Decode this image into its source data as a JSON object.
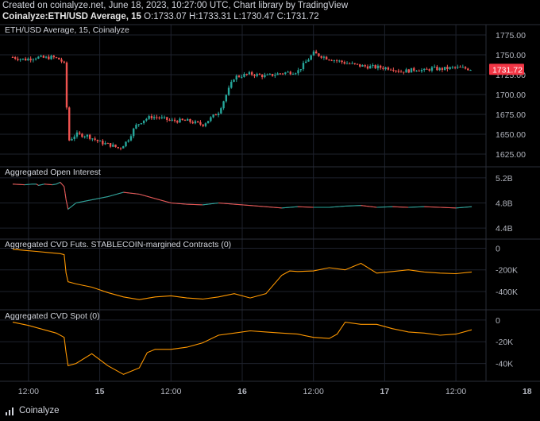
{
  "header": {
    "line1": "Created on coinalyze.net, June 18, 2023, 10:27:00 UTC, Chart library by TradingView",
    "symbol": "Coinalyze:ETH/USD Average, 15",
    "ohlc": "O:1733.07 H:1733.31 L:1730.47 C:1731.72"
  },
  "footer": {
    "brand": "Coinalyze",
    "logo_icon": "coinalyze-logo-icon"
  },
  "colors": {
    "up": "#26a69a",
    "down": "#ef5350",
    "line": "#ff9800",
    "grid": "#1e222d",
    "price_tag": "#f23645"
  },
  "chart_data": [
    {
      "type": "candlestick",
      "title": "ETH/USD Average, 15, Coinalyze",
      "y_ticks": [
        1775.0,
        1750.0,
        1725.0,
        1700.0,
        1675.0,
        1650.0,
        1625.0
      ],
      "y_tick_labels": [
        "1775.00",
        "1750.00",
        "1725.00",
        "1700.00",
        "1675.00",
        "1650.00",
        "1625.00"
      ],
      "ylim": [
        1615,
        1782
      ],
      "last_price": "1731.72",
      "x": [
        0,
        3,
        6,
        8,
        10,
        12,
        13,
        13.5,
        14.2,
        16,
        19,
        22,
        25,
        27,
        29,
        31,
        33,
        35,
        37,
        40,
        44,
        48,
        52,
        56,
        60,
        64,
        68,
        72,
        76,
        80,
        84,
        88,
        90,
        93,
        96,
        98,
        100,
        102,
        104,
        106,
        108,
        112,
        116
      ],
      "values": [
        1747,
        1744,
        1747,
        1746,
        1747,
        1744,
        1738,
        1695,
        1642,
        1650,
        1648,
        1640,
        1636,
        1632,
        1642,
        1660,
        1668,
        1672,
        1671,
        1667,
        1667,
        1662,
        1678,
        1722,
        1726,
        1723,
        1727,
        1729,
        1752,
        1745,
        1740,
        1736,
        1735,
        1734,
        1733,
        1729,
        1730,
        1732,
        1730,
        1733,
        1732,
        1734,
        1732
      ]
    },
    {
      "type": "line",
      "title": "Aggregated Open Interest",
      "y_ticks": [
        5.2,
        4.8,
        4.4
      ],
      "y_tick_labels": [
        "5.2B",
        "4.8B",
        "4.4B"
      ],
      "ylim": [
        4.3,
        5.3
      ],
      "x": [
        0,
        3,
        5,
        6,
        6.5,
        8,
        10,
        11,
        12,
        13,
        13.5,
        14,
        16,
        20,
        24,
        28,
        32,
        36,
        40,
        44,
        48,
        52,
        56,
        60,
        64,
        68,
        72,
        76,
        80,
        84,
        88,
        92,
        96,
        100,
        104,
        108,
        112,
        116
      ],
      "values": [
        5.1,
        5.09,
        5.1,
        5.1,
        5.08,
        5.1,
        5.09,
        5.1,
        5.13,
        5.06,
        4.85,
        4.7,
        4.8,
        4.85,
        4.9,
        4.97,
        4.94,
        4.87,
        4.8,
        4.78,
        4.77,
        4.8,
        4.78,
        4.76,
        4.74,
        4.72,
        4.74,
        4.73,
        4.73,
        4.75,
        4.76,
        4.73,
        4.74,
        4.73,
        4.74,
        4.73,
        4.72,
        4.74
      ]
    },
    {
      "type": "line",
      "title": "Aggregated CVD Futs. STABLECOIN-margined Contracts (0)",
      "y_ticks": [
        0,
        -200,
        -400
      ],
      "y_tick_labels": [
        "0",
        "-200K",
        "-400K"
      ],
      "ylim": [
        -525,
        40
      ],
      "x": [
        0,
        3,
        6,
        9,
        12,
        13,
        13.5,
        14,
        16,
        20,
        24,
        28,
        32,
        36,
        40,
        44,
        48,
        52,
        56,
        60,
        64,
        68,
        70,
        72,
        76,
        80,
        84,
        88,
        92,
        96,
        100,
        104,
        108,
        112,
        116
      ],
      "values": [
        -10,
        -20,
        -30,
        -40,
        -50,
        -60,
        -230,
        -310,
        -330,
        -360,
        -410,
        -450,
        -475,
        -450,
        -440,
        -460,
        -470,
        -450,
        -420,
        -460,
        -420,
        -250,
        -210,
        -215,
        -210,
        -180,
        -200,
        -140,
        -230,
        -215,
        -200,
        -220,
        -230,
        -235,
        -220
      ]
    },
    {
      "type": "line",
      "title": "Aggregated CVD Spot (0)",
      "y_ticks": [
        0,
        -20,
        -40
      ],
      "y_tick_labels": [
        "0",
        "-20K",
        "-40K"
      ],
      "ylim": [
        -52,
        5
      ],
      "x": [
        0,
        4,
        8,
        11,
        13,
        13.5,
        14,
        16,
        20,
        24,
        28,
        32,
        34,
        36,
        40,
        44,
        48,
        52,
        56,
        60,
        64,
        68,
        72,
        76,
        80,
        82,
        84,
        88,
        92,
        96,
        100,
        104,
        108,
        112,
        116
      ],
      "values": [
        -2,
        -5,
        -9,
        -12,
        -16,
        -30,
        -42,
        -40,
        -31,
        -42,
        -50,
        -44,
        -30,
        -27,
        -27,
        -25,
        -21,
        -14,
        -12,
        -10,
        -11,
        -12,
        -13,
        -16,
        -17,
        -13,
        -2,
        -4,
        -4,
        -8,
        -11,
        -12,
        -14,
        -13,
        -9
      ]
    }
  ],
  "x_axis": {
    "x_ticks": [
      4,
      22,
      40,
      58,
      76,
      94,
      112
    ],
    "labels": [
      "12:00",
      "15",
      "12:00",
      "16",
      "12:00",
      "17",
      "12:00"
    ],
    "labels_more": [
      [
        "130",
        "18"
      ],
      [
        "147",
        "12:0"
      ]
    ],
    "bold": [
      false,
      true,
      false,
      true,
      false,
      true,
      false
    ],
    "xlim": [
      -2,
      118
    ]
  }
}
